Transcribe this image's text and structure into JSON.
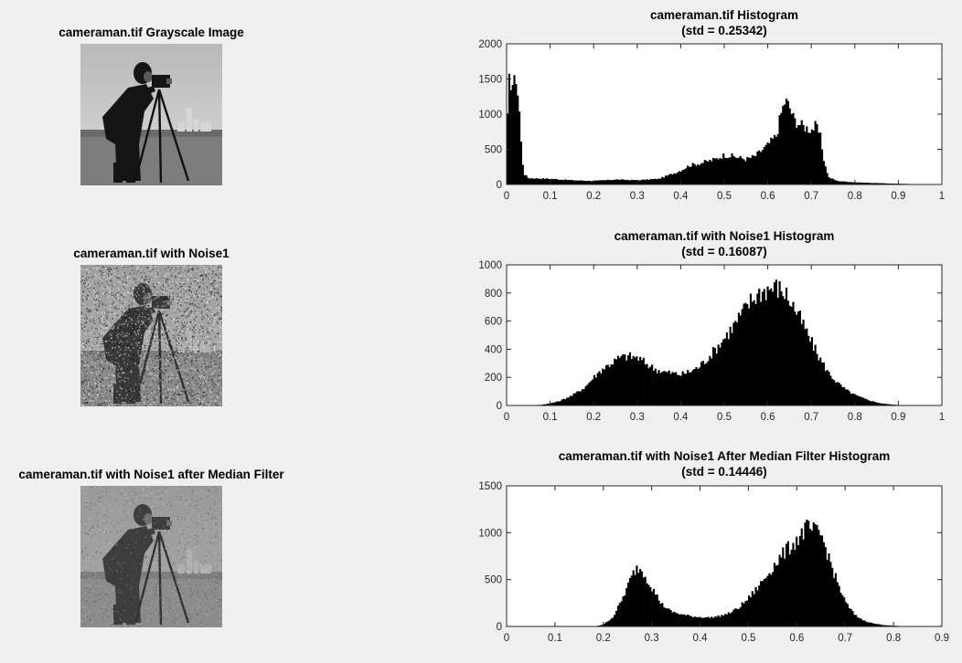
{
  "images": [
    {
      "title": "cameraman.tif Grayscale Image",
      "variant": "clean",
      "icon": "cameraman-photo"
    },
    {
      "title": "cameraman.tif with Noise1",
      "variant": "noisy",
      "icon": "cameraman-noisy-photo"
    },
    {
      "title": "cameraman.tif with Noise1 after Median Filter",
      "variant": "filtered",
      "icon": "cameraman-filtered-photo"
    }
  ],
  "chart_data": [
    {
      "type": "bar",
      "title": "cameraman.tif Histogram",
      "subtitle": "(std = 0.25342)",
      "xlim": [
        0,
        1
      ],
      "ylim": [
        0,
        2000
      ],
      "xticks": [
        "0",
        "0.1",
        "0.2",
        "0.3",
        "0.4",
        "0.5",
        "0.6",
        "0.7",
        "0.8",
        "0.9",
        "1"
      ],
      "yticks": [
        "0",
        "500",
        "1000",
        "1500",
        "2000"
      ],
      "profile": [
        [
          0.0,
          400
        ],
        [
          0.004,
          1500
        ],
        [
          0.008,
          1400
        ],
        [
          0.012,
          1550
        ],
        [
          0.016,
          1300
        ],
        [
          0.02,
          1650
        ],
        [
          0.024,
          1350
        ],
        [
          0.028,
          1200
        ],
        [
          0.032,
          700
        ],
        [
          0.036,
          350
        ],
        [
          0.04,
          150
        ],
        [
          0.05,
          90
        ],
        [
          0.1,
          80
        ],
        [
          0.15,
          60
        ],
        [
          0.2,
          50
        ],
        [
          0.25,
          70
        ],
        [
          0.3,
          60
        ],
        [
          0.35,
          80
        ],
        [
          0.38,
          150
        ],
        [
          0.4,
          200
        ],
        [
          0.42,
          270
        ],
        [
          0.45,
          310
        ],
        [
          0.48,
          360
        ],
        [
          0.5,
          420
        ],
        [
          0.52,
          400
        ],
        [
          0.55,
          360
        ],
        [
          0.57,
          400
        ],
        [
          0.6,
          560
        ],
        [
          0.62,
          700
        ],
        [
          0.63,
          1000
        ],
        [
          0.64,
          1200
        ],
        [
          0.65,
          1100
        ],
        [
          0.66,
          920
        ],
        [
          0.68,
          830
        ],
        [
          0.7,
          780
        ],
        [
          0.71,
          830
        ],
        [
          0.72,
          700
        ],
        [
          0.73,
          300
        ],
        [
          0.74,
          100
        ],
        [
          0.76,
          50
        ],
        [
          0.8,
          30
        ],
        [
          0.85,
          20
        ],
        [
          0.9,
          10
        ],
        [
          0.95,
          5
        ],
        [
          1.0,
          0
        ]
      ],
      "bar_color": "#000000"
    },
    {
      "type": "bar",
      "title": "cameraman.tif with Noise1 Histogram",
      "subtitle": "(std = 0.16087)",
      "xlim": [
        0,
        1
      ],
      "ylim": [
        0,
        1000
      ],
      "xticks": [
        "0",
        "0.1",
        "0.2",
        "0.3",
        "0.4",
        "0.5",
        "0.6",
        "0.7",
        "0.8",
        "0.9",
        "1"
      ],
      "yticks": [
        "0",
        "200",
        "400",
        "600",
        "800",
        "1000"
      ],
      "profile": [
        [
          0.0,
          0
        ],
        [
          0.05,
          0
        ],
        [
          0.08,
          5
        ],
        [
          0.1,
          15
        ],
        [
          0.12,
          30
        ],
        [
          0.15,
          70
        ],
        [
          0.18,
          130
        ],
        [
          0.2,
          200
        ],
        [
          0.22,
          260
        ],
        [
          0.24,
          300
        ],
        [
          0.26,
          340
        ],
        [
          0.28,
          350
        ],
        [
          0.3,
          340
        ],
        [
          0.32,
          300
        ],
        [
          0.34,
          260
        ],
        [
          0.36,
          240
        ],
        [
          0.38,
          230
        ],
        [
          0.4,
          220
        ],
        [
          0.42,
          240
        ],
        [
          0.44,
          270
        ],
        [
          0.46,
          330
        ],
        [
          0.48,
          400
        ],
        [
          0.5,
          480
        ],
        [
          0.52,
          560
        ],
        [
          0.54,
          650
        ],
        [
          0.56,
          740
        ],
        [
          0.58,
          800
        ],
        [
          0.6,
          830
        ],
        [
          0.62,
          840
        ],
        [
          0.64,
          800
        ],
        [
          0.66,
          700
        ],
        [
          0.68,
          580
        ],
        [
          0.7,
          450
        ],
        [
          0.72,
          330
        ],
        [
          0.74,
          230
        ],
        [
          0.76,
          160
        ],
        [
          0.78,
          110
        ],
        [
          0.8,
          75
        ],
        [
          0.82,
          50
        ],
        [
          0.84,
          30
        ],
        [
          0.86,
          15
        ],
        [
          0.88,
          8
        ],
        [
          0.9,
          3
        ],
        [
          0.95,
          0
        ],
        [
          1.0,
          0
        ]
      ],
      "bar_color": "#000000"
    },
    {
      "type": "bar",
      "title": "cameraman.tif with Noise1 After Median Filter Histogram",
      "subtitle": "(std = 0.14446)",
      "xlim": [
        0,
        0.9
      ],
      "ylim": [
        0,
        1500
      ],
      "xticks": [
        "0",
        "0.1",
        "0.2",
        "0.3",
        "0.4",
        "0.5",
        "0.6",
        "0.7",
        "0.8",
        "0.9"
      ],
      "yticks": [
        "0",
        "500",
        "1000",
        "1500"
      ],
      "profile": [
        [
          0.0,
          0
        ],
        [
          0.18,
          0
        ],
        [
          0.2,
          20
        ],
        [
          0.22,
          100
        ],
        [
          0.24,
          300
        ],
        [
          0.26,
          550
        ],
        [
          0.27,
          630
        ],
        [
          0.28,
          600
        ],
        [
          0.3,
          420
        ],
        [
          0.32,
          240
        ],
        [
          0.34,
          160
        ],
        [
          0.36,
          130
        ],
        [
          0.38,
          110
        ],
        [
          0.4,
          100
        ],
        [
          0.42,
          95
        ],
        [
          0.44,
          110
        ],
        [
          0.46,
          140
        ],
        [
          0.48,
          200
        ],
        [
          0.5,
          300
        ],
        [
          0.52,
          420
        ],
        [
          0.54,
          560
        ],
        [
          0.56,
          700
        ],
        [
          0.58,
          820
        ],
        [
          0.6,
          920
        ],
        [
          0.62,
          1050
        ],
        [
          0.64,
          1000
        ],
        [
          0.65,
          980
        ],
        [
          0.66,
          830
        ],
        [
          0.68,
          520
        ],
        [
          0.7,
          260
        ],
        [
          0.72,
          120
        ],
        [
          0.74,
          60
        ],
        [
          0.76,
          30
        ],
        [
          0.78,
          15
        ],
        [
          0.8,
          8
        ],
        [
          0.82,
          3
        ],
        [
          0.85,
          0
        ],
        [
          0.9,
          0
        ]
      ],
      "bar_color": "#000000"
    }
  ]
}
